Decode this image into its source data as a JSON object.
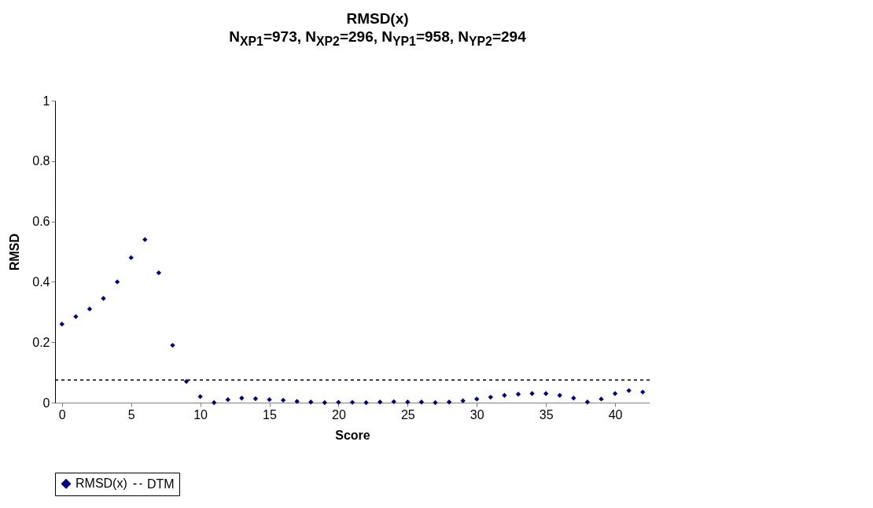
{
  "chart_data": {
    "type": "scatter",
    "title": "RMSD(x)",
    "subtitle": "N$_{XP1}$=973, N$_{XP2}$=296, N$_{YP1}$=958, N$_{YP2}$=294",
    "xlabel": "Score",
    "ylabel": "RMSD",
    "x": [
      0,
      1,
      2,
      3,
      4,
      5,
      6,
      7,
      8,
      9,
      10,
      11,
      12,
      13,
      14,
      15,
      16,
      17,
      18,
      19,
      20,
      21,
      22,
      23,
      24,
      25,
      26,
      27,
      28,
      29,
      30,
      31,
      32,
      33,
      34,
      35,
      36,
      37,
      38,
      39,
      40,
      41,
      42
    ],
    "series": [
      {
        "name": "RMSD(x)",
        "color": "#000080",
        "values": [
          0.26,
          0.285,
          0.31,
          0.345,
          0.4,
          0.48,
          0.54,
          0.43,
          0.19,
          0.07,
          0.02,
          0.0,
          0.01,
          0.015,
          0.013,
          0.01,
          0.008,
          0.004,
          0.002,
          0.0,
          0.001,
          0.001,
          0.0,
          0.002,
          0.003,
          0.002,
          0.002,
          0.0,
          0.002,
          0.006,
          0.012,
          0.018,
          0.024,
          0.028,
          0.03,
          0.03,
          0.024,
          0.015,
          0.002,
          0.012,
          0.03,
          0.04,
          0.035
        ]
      }
    ],
    "ref_lines": [
      {
        "axis": "y",
        "value": 0.075,
        "label": "DTM",
        "color": "#000000",
        "line_style": "dashed"
      }
    ],
    "marker": "diamond",
    "xlim": [
      -0.5,
      42.5
    ],
    "xticks": [
      0,
      5,
      10,
      15,
      20,
      25,
      30,
      35,
      40
    ],
    "ylim": [
      0,
      1
    ],
    "yticks": [
      0,
      0.2,
      0.4,
      0.6,
      0.8,
      1
    ],
    "grid": false,
    "legend": "bottom"
  }
}
